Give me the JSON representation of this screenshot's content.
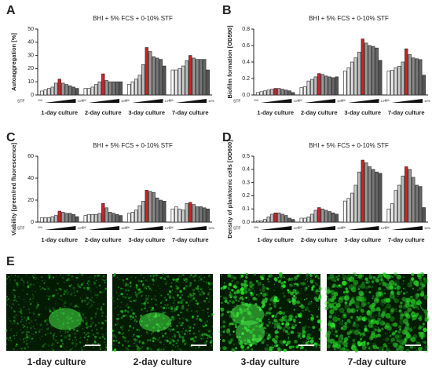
{
  "chart_data": [
    {
      "type": "grouped-bar",
      "panel": "A",
      "title": "BHI + 5% FCS + 0-10% STF",
      "y_label": "Autoaggregation [%]",
      "categories": [
        "1-day culture",
        "2-day culture",
        "3-day culture",
        "7-day culture"
      ],
      "groups": [
        [
          3,
          4,
          5,
          6,
          9,
          12,
          9,
          8,
          7,
          6,
          5
        ],
        [
          5,
          5,
          6,
          8,
          10,
          16,
          11,
          10,
          10,
          10,
          10
        ],
        [
          8,
          10,
          12,
          15,
          23,
          36,
          33,
          29,
          28,
          27,
          22
        ],
        [
          19,
          19,
          20,
          22,
          26,
          30,
          28,
          27,
          27,
          27,
          19
        ]
      ],
      "bar_colors": [
        "#ffffff",
        "#eeeeee",
        "#dddddd",
        "#cccccc",
        "#bbbbbb",
        "#d42020",
        "#999999",
        "#888888",
        "#777777",
        "#666666",
        "#555555"
      ],
      "ylim": [
        0,
        50
      ],
      "yticks": [
        0,
        10,
        20,
        30,
        40,
        50
      ],
      "stf_label": "STF",
      "concentration_labels": [
        "0%",
        "10%"
      ]
    },
    {
      "type": "grouped-bar",
      "panel": "B",
      "title": "BHI + 5% FCS + 0-10% STF",
      "y_label": "Biofilm formation [OD590]",
      "categories": [
        "1-day culture",
        "2-day culture",
        "3-day culture",
        "7-day culture"
      ],
      "groups": [
        [
          0.03,
          0.04,
          0.05,
          0.06,
          0.07,
          0.08,
          0.08,
          0.07,
          0.06,
          0.05,
          0.03
        ],
        [
          0.09,
          0.1,
          0.17,
          0.19,
          0.22,
          0.26,
          0.25,
          0.23,
          0.22,
          0.21,
          0.22
        ],
        [
          0.29,
          0.33,
          0.4,
          0.45,
          0.52,
          0.68,
          0.63,
          0.6,
          0.59,
          0.57,
          0.42
        ],
        [
          0.29,
          0.3,
          0.33,
          0.35,
          0.4,
          0.56,
          0.49,
          0.45,
          0.44,
          0.43,
          0.24
        ]
      ],
      "bar_colors": [
        "#ffffff",
        "#eeeeee",
        "#dddddd",
        "#cccccc",
        "#bbbbbb",
        "#d42020",
        "#999999",
        "#888888",
        "#777777",
        "#666666",
        "#555555"
      ],
      "ylim": [
        0,
        0.8
      ],
      "yticks": [
        {
          "value": 0,
          "label": "0.0"
        },
        0.2,
        0.4,
        0.6,
        0.8
      ],
      "stf_label": "STF",
      "concentration_labels": [
        "0%",
        "10%"
      ]
    },
    {
      "type": "grouped-bar",
      "panel": "C",
      "title": "BHI + 5% FCS + 0-10% STF",
      "y_label": "Viability [green/red fluorescence]",
      "categories": [
        "1-day culture",
        "2-day culture",
        "3-day culture",
        "7-day culture"
      ],
      "groups": [
        [
          4,
          4,
          4,
          5,
          6,
          10,
          9,
          8,
          8,
          7,
          5
        ],
        [
          6,
          7,
          7,
          7,
          8,
          17,
          13,
          9,
          8,
          7,
          6
        ],
        [
          8,
          9,
          11,
          15,
          19,
          29,
          28,
          27,
          22,
          20,
          19
        ],
        [
          12,
          14,
          12,
          11,
          17,
          18,
          16,
          14,
          14,
          13,
          12
        ]
      ],
      "bar_colors": [
        "#ffffff",
        "#eeeeee",
        "#dddddd",
        "#cccccc",
        "#bbbbbb",
        "#d42020",
        "#999999",
        "#888888",
        "#777777",
        "#666666",
        "#555555"
      ],
      "ylim": [
        0,
        60
      ],
      "yticks": [
        0,
        20,
        40,
        60
      ],
      "stf_label": "STF",
      "concentration_labels": [
        "0%",
        "10%"
      ]
    },
    {
      "type": "grouped-bar",
      "panel": "D",
      "title": "BHI + 5% FCS + 0-10% STF",
      "y_label": "Density of planktonic cells [OD600]",
      "categories": [
        "1-day culture",
        "2-day culture",
        "3-day culture",
        "7-day culture"
      ],
      "groups": [
        [
          0.01,
          0.01,
          0.02,
          0.04,
          0.06,
          0.07,
          0.07,
          0.06,
          0.05,
          0.03,
          0.02
        ],
        [
          0.03,
          0.03,
          0.04,
          0.06,
          0.09,
          0.11,
          0.1,
          0.09,
          0.08,
          0.07,
          0.06
        ],
        [
          0.16,
          0.18,
          0.22,
          0.28,
          0.38,
          0.47,
          0.45,
          0.42,
          0.4,
          0.38,
          0.37
        ],
        [
          0.1,
          0.14,
          0.24,
          0.28,
          0.35,
          0.42,
          0.4,
          0.34,
          0.28,
          0.27,
          0.11
        ]
      ],
      "bar_colors": [
        "#ffffff",
        "#eeeeee",
        "#dddddd",
        "#cccccc",
        "#bbbbbb",
        "#d42020",
        "#999999",
        "#888888",
        "#777777",
        "#666666",
        "#555555"
      ],
      "ylim": [
        0,
        0.5
      ],
      "yticks": [
        {
          "value": 0,
          "label": "0.0"
        },
        0.1,
        0.2,
        0.3,
        0.4,
        0.5
      ],
      "stf_label": "STF",
      "concentration_labels": [
        "0%",
        "10%"
      ]
    }
  ],
  "images": {
    "panel": "E",
    "captions": [
      "1-day culture",
      "2-day culture",
      "3-day culture",
      "7-day culture"
    ]
  }
}
